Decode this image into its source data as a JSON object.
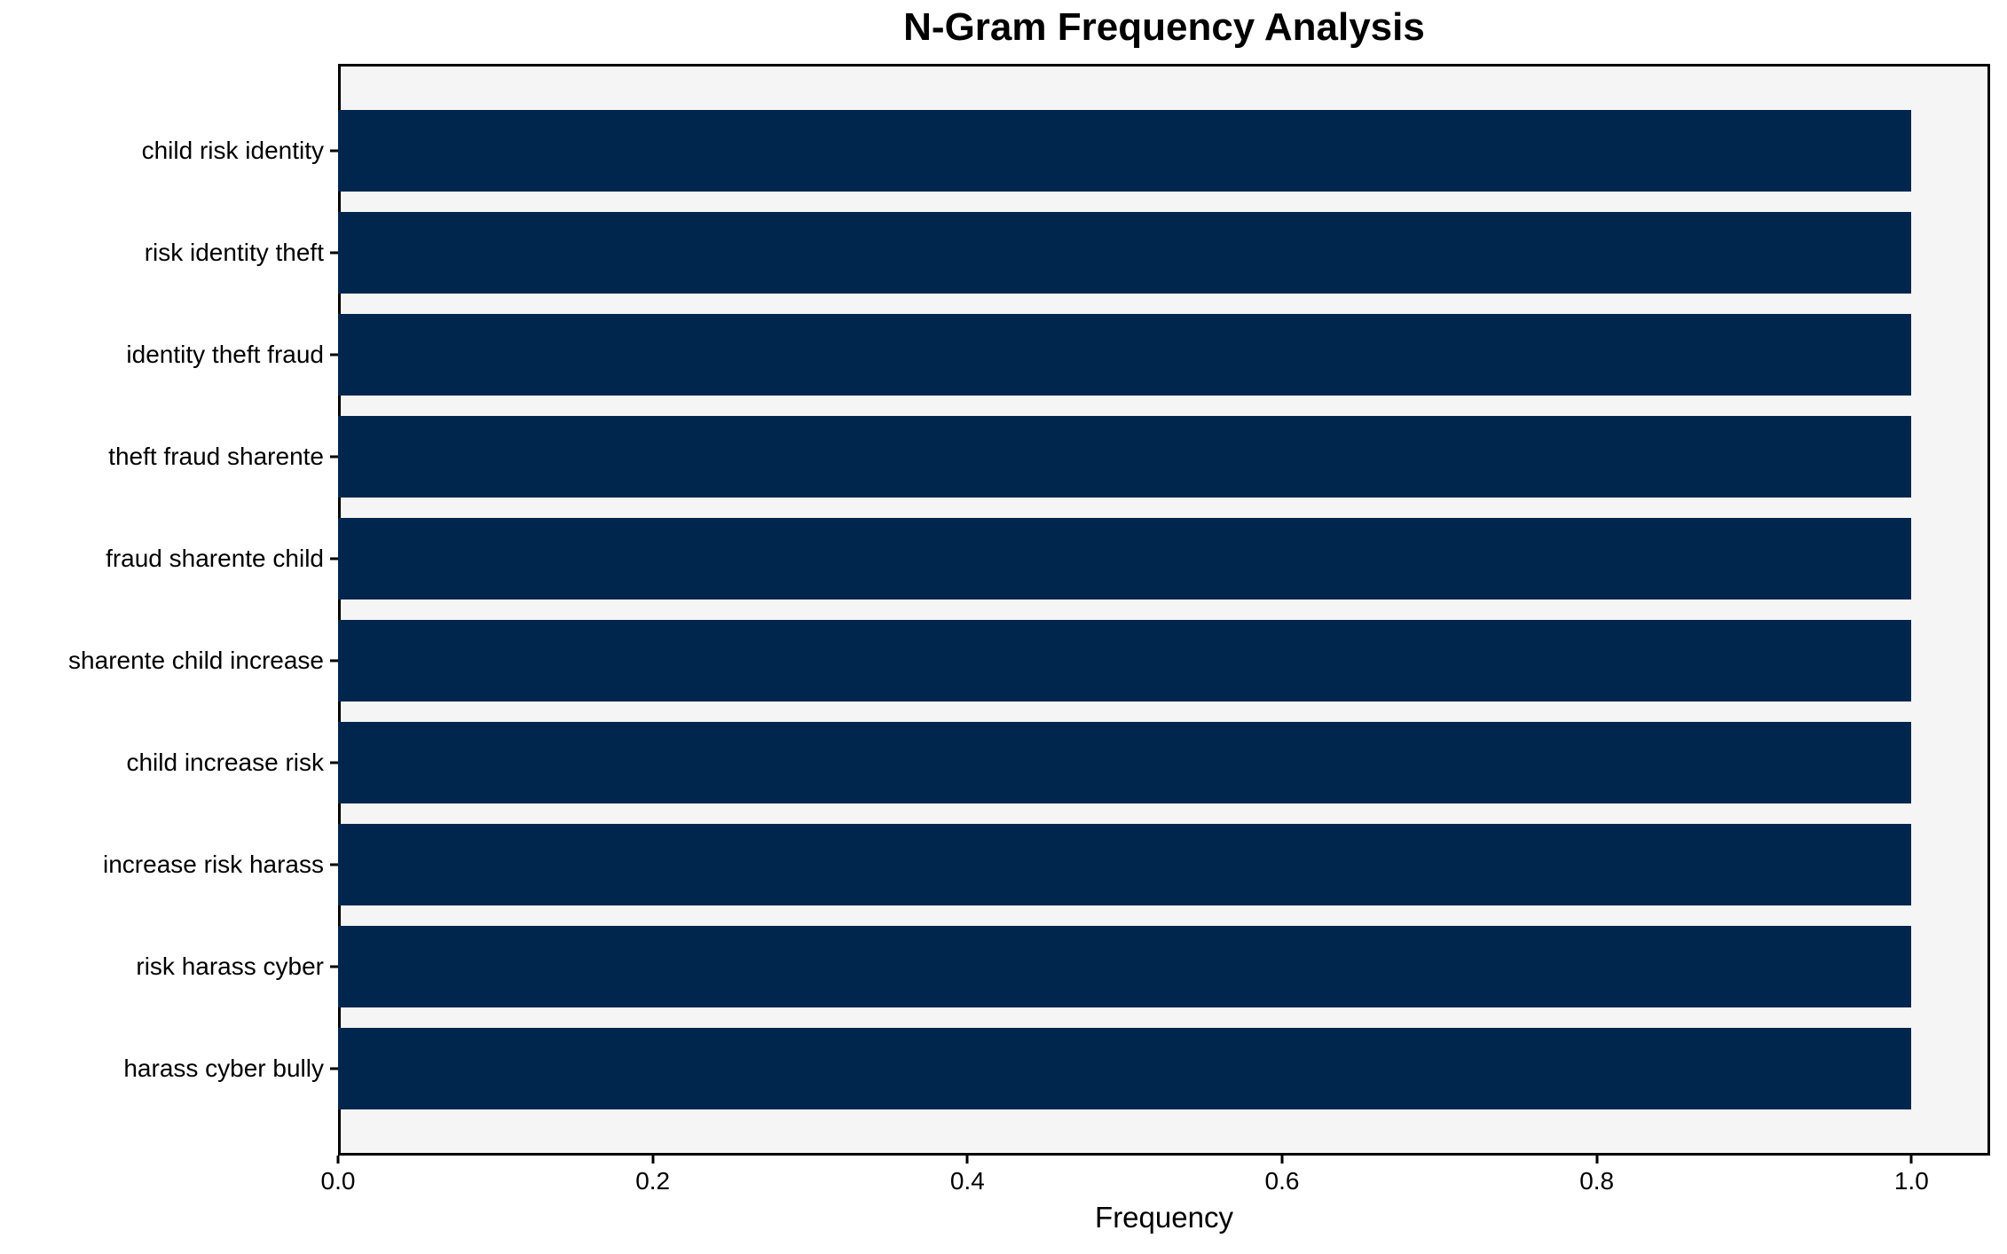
{
  "chart_data": {
    "type": "bar",
    "orientation": "horizontal",
    "title": "N-Gram Frequency Analysis",
    "xlabel": "Frequency",
    "ylabel": "",
    "categories": [
      "child risk identity",
      "risk identity theft",
      "identity theft fraud",
      "theft fraud sharente",
      "fraud sharente child",
      "sharente child increase",
      "child increase risk",
      "increase risk harass",
      "risk harass cyber",
      "harass cyber bully"
    ],
    "values": [
      1.0,
      1.0,
      1.0,
      1.0,
      1.0,
      1.0,
      1.0,
      1.0,
      1.0,
      1.0
    ],
    "xlim": [
      0,
      1.05
    ],
    "xticks": [
      0.0,
      0.2,
      0.4,
      0.6,
      0.8,
      1.0
    ],
    "xtick_labels": [
      "0.0",
      "0.2",
      "0.4",
      "0.6",
      "0.8",
      "1.0"
    ],
    "grid": false,
    "legend": null,
    "colors": {
      "bar": "#01264e",
      "plot_background": "#f5f5f5",
      "figure_background": "#ffffff",
      "spine": "#000000",
      "text": "#000000"
    }
  }
}
